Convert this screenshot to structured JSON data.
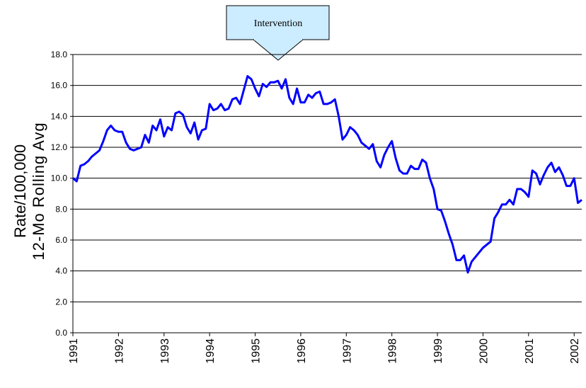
{
  "chart_data": {
    "type": "line",
    "annotation": "Intervention",
    "y_label": [
      "Rate/100,000",
      "12-Mo Rolling Avg"
    ],
    "x": [
      1991,
      1991.083,
      1991.167,
      1991.25,
      1991.333,
      1991.417,
      1991.5,
      1991.583,
      1991.667,
      1991.75,
      1991.833,
      1991.917,
      1992,
      1992.083,
      1992.167,
      1992.25,
      1992.333,
      1992.417,
      1992.5,
      1992.583,
      1992.667,
      1992.75,
      1992.833,
      1992.917,
      1993,
      1993.083,
      1993.167,
      1993.25,
      1993.333,
      1993.417,
      1993.5,
      1993.583,
      1993.667,
      1993.75,
      1993.833,
      1993.917,
      1994,
      1994.083,
      1994.167,
      1994.25,
      1994.333,
      1994.417,
      1994.5,
      1994.583,
      1994.667,
      1994.75,
      1994.833,
      1994.917,
      1995,
      1995.083,
      1995.167,
      1995.25,
      1995.333,
      1995.417,
      1995.5,
      1995.583,
      1995.667,
      1995.75,
      1995.833,
      1995.917,
      1996,
      1996.083,
      1996.167,
      1996.25,
      1996.333,
      1996.417,
      1996.5,
      1996.583,
      1996.667,
      1996.75,
      1996.833,
      1996.917,
      1997,
      1997.083,
      1997.167,
      1997.25,
      1997.333,
      1997.417,
      1997.5,
      1997.583,
      1997.667,
      1997.75,
      1997.833,
      1997.917,
      1998,
      1998.083,
      1998.167,
      1998.25,
      1998.333,
      1998.417,
      1998.5,
      1998.583,
      1998.667,
      1998.75,
      1998.833,
      1998.917,
      1999,
      1999.083,
      1999.167,
      1999.25,
      1999.333,
      1999.417,
      1999.5,
      1999.583,
      1999.667,
      1999.75,
      1999.833,
      1999.917,
      2000,
      2000.083,
      2000.167,
      2000.25,
      2000.333,
      2000.417,
      2000.5,
      2000.583,
      2000.667,
      2000.75,
      2000.833,
      2000.917,
      2001,
      2001.083,
      2001.167,
      2001.25,
      2001.333,
      2001.417,
      2001.5,
      2001.583,
      2001.667,
      2001.75,
      2001.833,
      2001.917,
      2002,
      2002.083,
      2002.167
    ],
    "series": [
      {
        "name": "Rate",
        "color": "#0000ff",
        "values": [
          10.0,
          9.8,
          10.8,
          10.9,
          11.1,
          11.4,
          11.6,
          11.8,
          12.4,
          13.1,
          13.4,
          13.1,
          13.0,
          13.0,
          12.3,
          11.9,
          11.8,
          11.9,
          12.0,
          12.8,
          12.3,
          13.4,
          13.1,
          13.8,
          12.7,
          13.3,
          13.1,
          14.2,
          14.3,
          14.1,
          13.3,
          12.9,
          13.6,
          12.5,
          13.1,
          13.2,
          14.8,
          14.4,
          14.5,
          14.8,
          14.4,
          14.5,
          15.1,
          15.2,
          14.8,
          15.7,
          16.6,
          16.4,
          15.8,
          15.3,
          16.1,
          15.9,
          16.2,
          16.2,
          16.3,
          15.8,
          16.4,
          15.2,
          14.8,
          15.8,
          14.9,
          14.9,
          15.4,
          15.2,
          15.5,
          15.6,
          14.8,
          14.8,
          14.9,
          15.1,
          14.0,
          12.5,
          12.8,
          13.3,
          13.1,
          12.8,
          12.3,
          12.1,
          11.9,
          12.2,
          11.1,
          10.7,
          11.5,
          12.0,
          12.4,
          11.3,
          10.5,
          10.3,
          10.3,
          10.8,
          10.6,
          10.6,
          11.2,
          11.0,
          10.0,
          9.3,
          8.0,
          7.9,
          7.2,
          6.4,
          5.7,
          4.7,
          4.7,
          5.0,
          3.9,
          4.6,
          4.9,
          5.2,
          5.5,
          5.7,
          5.9,
          7.4,
          7.8,
          8.3,
          8.3,
          8.6,
          8.3,
          9.3,
          9.3,
          9.1,
          8.8,
          10.5,
          10.3,
          9.6,
          10.2,
          10.7,
          11.0,
          10.4,
          10.7,
          10.2,
          9.5,
          9.5,
          10.0,
          8.4,
          8.6
        ]
      }
    ],
    "xlim": [
      1991,
      2002.167
    ],
    "xticks": [
      1991,
      1992,
      1993,
      1994,
      1995,
      1996,
      1997,
      1998,
      1999,
      2000,
      2001,
      2002
    ],
    "ylim": [
      0,
      18
    ],
    "yticks": [
      {
        "value": 0,
        "label": "0.0"
      },
      {
        "value": 2,
        "label": "2.0"
      },
      {
        "value": 4,
        "label": "4.0"
      },
      {
        "value": 6,
        "label": "6.0"
      },
      {
        "value": 8,
        "label": "8.0"
      },
      {
        "value": 10,
        "label": "10.0"
      },
      {
        "value": 12,
        "label": "12.0"
      },
      {
        "value": 14,
        "label": "14.0"
      },
      {
        "value": 16,
        "label": "16.0"
      },
      {
        "value": 18,
        "label": "18.0"
      }
    ],
    "grid": true
  }
}
